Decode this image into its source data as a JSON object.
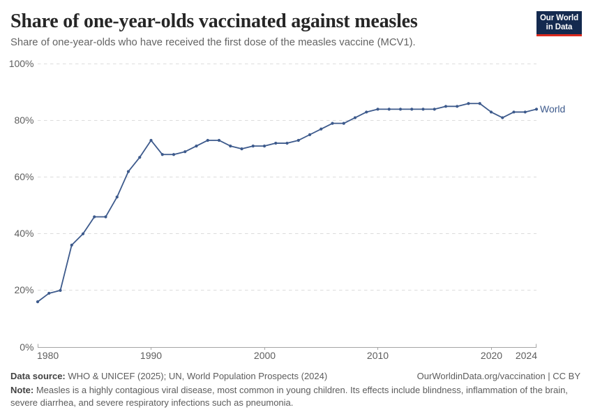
{
  "header": {
    "title": "Share of one-year-olds vaccinated against measles",
    "subtitle": "Share of one-year-olds who have received the first dose of the measles vaccine (MCV1)."
  },
  "logo": {
    "line1": "Our World",
    "line2": "in Data",
    "bg_color": "#142a4f",
    "accent_color": "#dc2a1e"
  },
  "chart_data": {
    "type": "line",
    "title": "Share of one-year-olds vaccinated against measles",
    "xlabel": "",
    "ylabel": "",
    "x": [
      1980,
      1981,
      1982,
      1983,
      1984,
      1985,
      1986,
      1987,
      1988,
      1989,
      1990,
      1991,
      1992,
      1993,
      1994,
      1995,
      1996,
      1997,
      1998,
      1999,
      2000,
      2001,
      2002,
      2003,
      2004,
      2005,
      2006,
      2007,
      2008,
      2009,
      2010,
      2011,
      2012,
      2013,
      2014,
      2015,
      2016,
      2017,
      2018,
      2019,
      2020,
      2021,
      2022,
      2023,
      2024
    ],
    "series": [
      {
        "name": "World",
        "color": "#3d5a8c",
        "values": [
          16,
          19,
          20,
          36,
          40,
          46,
          46,
          53,
          62,
          67,
          73,
          68,
          68,
          69,
          71,
          73,
          73,
          71,
          70,
          71,
          71,
          72,
          72,
          73,
          75,
          77,
          79,
          79,
          81,
          83,
          84,
          84,
          84,
          84,
          84,
          84,
          85,
          85,
          86,
          86,
          83,
          81,
          83,
          83,
          84
        ]
      }
    ],
    "ylim": [
      0,
      100
    ],
    "yticks": [
      0,
      20,
      40,
      60,
      80,
      100
    ],
    "ytick_suffix": "%",
    "xticks": [
      1980,
      1990,
      2000,
      2010,
      2020,
      2024
    ],
    "grid": true,
    "legend_position": "end-of-line",
    "colors": {
      "gridline": "#dcdcdc",
      "axis": "#a5a5a5",
      "tick_label": "#5e5e5e"
    }
  },
  "footer": {
    "source_label": "Data source:",
    "source_text": " WHO & UNICEF (2025); UN, World Population Prospects (2024)",
    "link_text": "OurWorldinData.org/vaccination | CC BY",
    "note_label": "Note:",
    "note_text": " Measles is a highly contagious viral disease, most common in young children. Its effects include blindness, inflammation of the brain, severe diarrhea, and severe respiratory infections such as pneumonia."
  }
}
